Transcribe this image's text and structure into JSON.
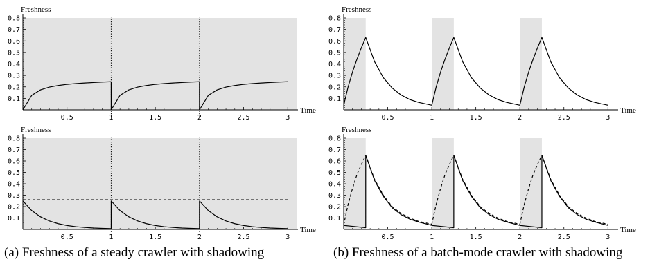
{
  "captions": {
    "a": "(a) Freshness of a steady crawler with shadowing",
    "b": "(b) Freshness of a batch-mode crawler with shadowing"
  },
  "colors": {
    "shade": "#e3e3e3",
    "line": "#000000",
    "axis": "#000000"
  },
  "chart_data": [
    {
      "id": "a-top",
      "type": "line",
      "panel": "(a) top",
      "ylabel": "Freshness",
      "xlabel": "Time",
      "xlim": [
        0,
        3.1
      ],
      "ylim": [
        0,
        0.8
      ],
      "xticks": [
        0.5,
        1,
        1.5,
        2,
        2.5,
        3
      ],
      "xticklabels": [
        "0.5",
        "1",
        "1.5",
        "2",
        "2.5",
        "3"
      ],
      "yticks": [
        0.1,
        0.2,
        0.3,
        0.4,
        0.5,
        0.6,
        0.7,
        0.8
      ],
      "yticklabels": [
        "0.1",
        "0.2",
        "0.3",
        "0.4",
        "0.5",
        "0.6",
        "0.7",
        "0.8"
      ],
      "shaded_intervals": [
        [
          0,
          3.1
        ]
      ],
      "vlines_dotted": [
        1,
        2
      ],
      "series": [
        {
          "style": "solid",
          "segments": [
            {
              "x": [
                0,
                0.1,
                0.2,
                0.3,
                0.4,
                0.5,
                0.6,
                0.7,
                0.8,
                0.9,
                1.0
              ],
              "y": [
                0,
                0.126,
                0.174,
                0.198,
                0.212,
                0.222,
                0.229,
                0.234,
                0.238,
                0.242,
                0.245
              ]
            },
            {
              "x": [
                1.0,
                1.1,
                1.2,
                1.3,
                1.4,
                1.5,
                1.6,
                1.7,
                1.8,
                1.9,
                2.0
              ],
              "y": [
                0,
                0.126,
                0.174,
                0.198,
                0.212,
                0.222,
                0.229,
                0.234,
                0.238,
                0.242,
                0.245
              ]
            },
            {
              "x": [
                2.0,
                2.1,
                2.2,
                2.3,
                2.4,
                2.5,
                2.6,
                2.7,
                2.8,
                2.9,
                3.0
              ],
              "y": [
                0,
                0.126,
                0.174,
                0.198,
                0.212,
                0.222,
                0.229,
                0.234,
                0.238,
                0.242,
                0.245
              ]
            }
          ],
          "vertical_jumps": [
            [
              1,
              0.245,
              0
            ],
            [
              2,
              0.245,
              0
            ]
          ]
        }
      ]
    },
    {
      "id": "a-bottom",
      "type": "line",
      "panel": "(a) bottom",
      "ylabel": "Freshness",
      "xlabel": "Time",
      "xlim": [
        0,
        3.1
      ],
      "ylim": [
        0,
        0.8
      ],
      "xticks": [
        0.5,
        1,
        1.5,
        2,
        2.5,
        3
      ],
      "xticklabels": [
        "0.5",
        "1",
        "1.5",
        "2",
        "2.5",
        "3"
      ],
      "yticks": [
        0.1,
        0.2,
        0.3,
        0.4,
        0.5,
        0.6,
        0.7,
        0.8
      ],
      "yticklabels": [
        "0.1",
        "0.2",
        "0.3",
        "0.4",
        "0.5",
        "0.6",
        "0.7",
        "0.8"
      ],
      "shaded_intervals": [
        [
          0,
          3.1
        ]
      ],
      "vlines_dotted": [
        1,
        2
      ],
      "series": [
        {
          "style": "solid",
          "segments": [
            {
              "x": [
                0,
                0.1,
                0.2,
                0.3,
                0.4,
                0.5,
                0.6,
                0.7,
                0.8,
                0.9,
                1.0
              ],
              "y": [
                0.25,
                0.165,
                0.11,
                0.074,
                0.05,
                0.034,
                0.024,
                0.017,
                0.012,
                0.009,
                0.007
              ]
            },
            {
              "x": [
                1.0,
                1.1,
                1.2,
                1.3,
                1.4,
                1.5,
                1.6,
                1.7,
                1.8,
                1.9,
                2.0
              ],
              "y": [
                0.25,
                0.165,
                0.11,
                0.074,
                0.05,
                0.034,
                0.024,
                0.017,
                0.012,
                0.009,
                0.007
              ]
            },
            {
              "x": [
                2.0,
                2.1,
                2.2,
                2.3,
                2.4,
                2.5,
                2.6,
                2.7,
                2.8,
                2.9,
                3.0
              ],
              "y": [
                0.25,
                0.165,
                0.11,
                0.074,
                0.05,
                0.034,
                0.024,
                0.017,
                0.012,
                0.009,
                0.007
              ]
            }
          ],
          "vertical_jumps": [
            [
              1,
              0.007,
              0.25
            ],
            [
              2,
              0.007,
              0.25
            ]
          ]
        },
        {
          "style": "dashed",
          "segments": [
            {
              "x": [
                0,
                3.0
              ],
              "y": [
                0.26,
                0.26
              ]
            }
          ]
        }
      ]
    },
    {
      "id": "b-top",
      "type": "line",
      "panel": "(b) top",
      "ylabel": "Freshness",
      "xlabel": "Time",
      "xlim": [
        0,
        3.1
      ],
      "ylim": [
        0,
        0.8
      ],
      "xticks": [
        0.5,
        1,
        1.5,
        2,
        2.5,
        3
      ],
      "xticklabels": [
        "0.5",
        "1",
        "1.5",
        "2",
        "2.5",
        "3"
      ],
      "yticks": [
        0.1,
        0.2,
        0.3,
        0.4,
        0.5,
        0.6,
        0.7,
        0.8
      ],
      "yticklabels": [
        "0.1",
        "0.2",
        "0.3",
        "0.4",
        "0.5",
        "0.6",
        "0.7",
        "0.8"
      ],
      "shaded_intervals": [
        [
          0,
          0.25
        ],
        [
          1,
          1.25
        ],
        [
          2,
          2.25
        ]
      ],
      "vlines_dotted": [],
      "series": [
        {
          "style": "solid",
          "segments": [
            {
              "x": [
                0,
                0.05,
                0.1,
                0.15,
                0.2,
                0.25,
                0.35,
                0.45,
                0.55,
                0.65,
                0.75,
                0.85,
                1.0
              ],
              "y": [
                0.04,
                0.2,
                0.33,
                0.44,
                0.54,
                0.63,
                0.42,
                0.28,
                0.19,
                0.13,
                0.09,
                0.065,
                0.04
              ]
            },
            {
              "x": [
                1.0,
                1.05,
                1.1,
                1.15,
                1.2,
                1.25,
                1.35,
                1.45,
                1.55,
                1.65,
                1.75,
                1.85,
                2.0
              ],
              "y": [
                0.04,
                0.2,
                0.33,
                0.44,
                0.54,
                0.63,
                0.42,
                0.28,
                0.19,
                0.13,
                0.09,
                0.065,
                0.04
              ]
            },
            {
              "x": [
                2.0,
                2.05,
                2.1,
                2.15,
                2.2,
                2.25,
                2.35,
                2.45,
                2.55,
                2.65,
                2.75,
                2.85,
                3.0
              ],
              "y": [
                0.04,
                0.2,
                0.33,
                0.44,
                0.54,
                0.63,
                0.42,
                0.28,
                0.19,
                0.13,
                0.09,
                0.065,
                0.04
              ]
            }
          ]
        }
      ]
    },
    {
      "id": "b-bottom",
      "type": "line",
      "panel": "(b) bottom",
      "ylabel": "Freshness",
      "xlabel": "Time",
      "xlim": [
        0,
        3.1
      ],
      "ylim": [
        0,
        0.8
      ],
      "xticks": [
        0.5,
        1,
        1.5,
        2,
        2.5,
        3
      ],
      "xticklabels": [
        "0.5",
        "1",
        "1.5",
        "2",
        "2.5",
        "3"
      ],
      "yticks": [
        0.1,
        0.2,
        0.3,
        0.4,
        0.5,
        0.6,
        0.7,
        0.8
      ],
      "yticklabels": [
        "0.1",
        "0.2",
        "0.3",
        "0.4",
        "0.5",
        "0.6",
        "0.7",
        "0.8"
      ],
      "shaded_intervals": [
        [
          0,
          0.25
        ],
        [
          1,
          1.25
        ],
        [
          2,
          2.25
        ]
      ],
      "vlines_dotted": [],
      "series": [
        {
          "style": "solid",
          "segments": [
            {
              "x": [
                0,
                0.25,
                0.25,
                0.35,
                0.45,
                0.55,
                0.65,
                0.75,
                0.85,
                1.0,
                1.25,
                1.25,
                1.35,
                1.45,
                1.55,
                1.65,
                1.75,
                1.85,
                2.0,
                2.25,
                2.25,
                2.35,
                2.45,
                2.55,
                2.65,
                2.75,
                2.85,
                3.0
              ],
              "y": [
                0.035,
                0.015,
                0.65,
                0.43,
                0.29,
                0.19,
                0.13,
                0.09,
                0.065,
                0.035,
                0.015,
                0.65,
                0.43,
                0.29,
                0.19,
                0.13,
                0.09,
                0.065,
                0.035,
                0.015,
                0.65,
                0.43,
                0.29,
                0.19,
                0.13,
                0.09,
                0.065,
                0.035
              ]
            }
          ]
        },
        {
          "style": "dashed",
          "segments": [
            {
              "x": [
                0,
                0.05,
                0.1,
                0.15,
                0.2,
                0.25,
                0.35,
                0.45,
                0.55,
                0.65,
                0.75,
                0.85,
                1.0
              ],
              "y": [
                0.04,
                0.22,
                0.36,
                0.48,
                0.57,
                0.65,
                0.44,
                0.3,
                0.2,
                0.14,
                0.1,
                0.07,
                0.045
              ]
            },
            {
              "x": [
                1.0,
                1.05,
                1.1,
                1.15,
                1.2,
                1.25,
                1.35,
                1.45,
                1.55,
                1.65,
                1.75,
                1.85,
                2.0
              ],
              "y": [
                0.045,
                0.22,
                0.36,
                0.48,
                0.57,
                0.65,
                0.44,
                0.3,
                0.2,
                0.14,
                0.1,
                0.07,
                0.045
              ]
            },
            {
              "x": [
                2.0,
                2.05,
                2.1,
                2.15,
                2.2,
                2.25,
                2.35,
                2.45,
                2.55,
                2.65,
                2.75,
                2.85,
                3.0
              ],
              "y": [
                0.045,
                0.22,
                0.36,
                0.48,
                0.57,
                0.65,
                0.44,
                0.3,
                0.2,
                0.14,
                0.1,
                0.07,
                0.045
              ]
            }
          ]
        }
      ]
    }
  ]
}
